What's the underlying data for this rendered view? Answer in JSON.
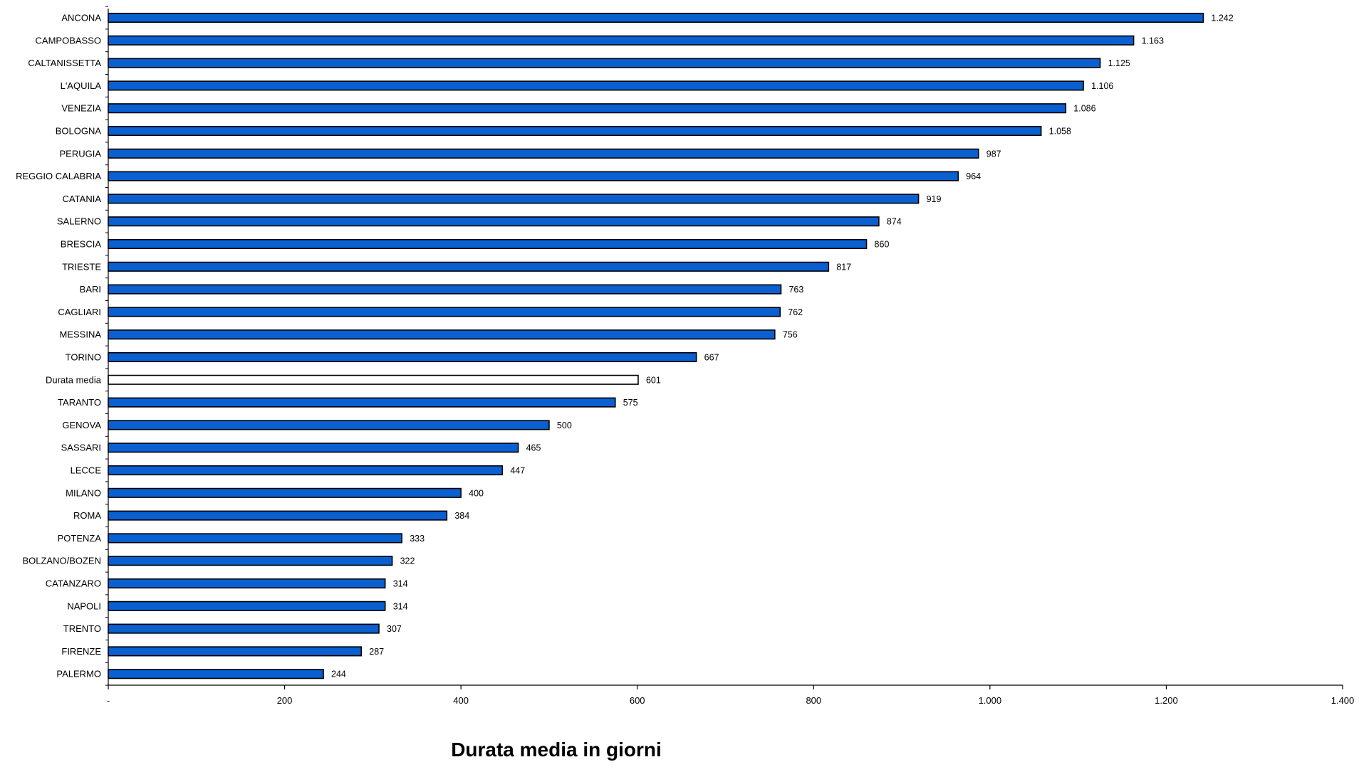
{
  "chart_data": {
    "type": "bar",
    "orientation": "horizontal",
    "title": "",
    "xlabel": "Durata media in giorni",
    "ylabel": "",
    "xlim": [
      0,
      1400
    ],
    "x_ticks": [
      0,
      200,
      400,
      600,
      800,
      1000,
      1200,
      1400
    ],
    "x_tick_labels": [
      "-",
      "200",
      "400",
      "600",
      "800",
      "1.000",
      "1.200",
      "1.400"
    ],
    "grid": false,
    "legend": "none",
    "bar_color": "#0a5fd1",
    "highlight_color": "#ffffff",
    "categories": [
      "ANCONA",
      "CAMPOBASSO",
      "CALTANISSETTA",
      "L'AQUILA",
      "VENEZIA",
      "BOLOGNA",
      "PERUGIA",
      "REGGIO CALABRIA",
      "CATANIA",
      "SALERNO",
      "BRESCIA",
      "TRIESTE",
      "BARI",
      "CAGLIARI",
      "MESSINA",
      "TORINO",
      "Durata media",
      "TARANTO",
      "GENOVA",
      "SASSARI",
      "LECCE",
      "MILANO",
      "ROMA",
      "POTENZA",
      "BOLZANO/BOZEN",
      "CATANZARO",
      "NAPOLI",
      "TRENTO",
      "FIRENZE",
      "PALERMO"
    ],
    "values": [
      1242,
      1163,
      1125,
      1106,
      1086,
      1058,
      987,
      964,
      919,
      874,
      860,
      817,
      763,
      762,
      756,
      667,
      601,
      575,
      500,
      465,
      447,
      400,
      384,
      333,
      322,
      314,
      314,
      307,
      287,
      244
    ],
    "value_labels": [
      "1.242",
      "1.163",
      "1.125",
      "1.106",
      "1.086",
      "1.058",
      "987",
      "964",
      "919",
      "874",
      "860",
      "817",
      "763",
      "762",
      "756",
      "667",
      "601",
      "575",
      "500",
      "465",
      "447",
      "400",
      "384",
      "333",
      "322",
      "314",
      "314",
      "307",
      "287",
      "244"
    ],
    "highlighted_category": "Durata media"
  }
}
